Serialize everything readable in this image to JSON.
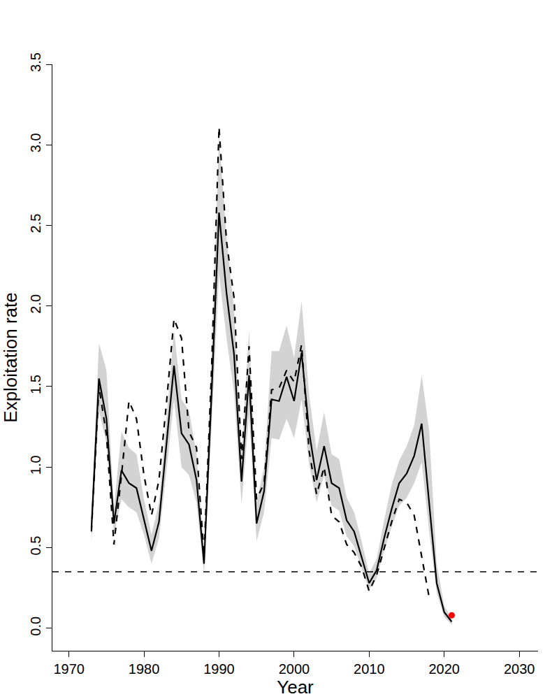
{
  "chart_data": {
    "type": "line",
    "x_label": "Year",
    "y_label": "Exploitation rate",
    "x": [
      1973,
      1974,
      1975,
      1976,
      1977,
      1978,
      1979,
      1980,
      1981,
      1982,
      1983,
      1984,
      1985,
      1986,
      1987,
      1988,
      1989,
      1990,
      1991,
      1992,
      1993,
      1994,
      1995,
      1996,
      1997,
      1998,
      1999,
      2000,
      2001,
      2002,
      2003,
      2004,
      2005,
      2006,
      2007,
      2008,
      2009,
      2010,
      2011,
      2012,
      2013,
      2014,
      2015,
      2016,
      2017,
      2018,
      2019,
      2020,
      2021
    ],
    "series": [
      {
        "color": "black",
        "line_style": "solid",
        "values": [
          0.62,
          1.55,
          1.3,
          0.65,
          0.98,
          0.9,
          0.87,
          0.68,
          0.48,
          0.66,
          1.13,
          1.63,
          1.21,
          1.14,
          0.92,
          0.4,
          1.45,
          2.58,
          2.08,
          1.7,
          0.91,
          1.57,
          0.65,
          0.85,
          1.42,
          1.41,
          1.56,
          1.41,
          1.71,
          1.22,
          0.92,
          1.13,
          0.9,
          0.87,
          0.67,
          0.6,
          0.44,
          0.28,
          0.36,
          0.56,
          0.74,
          0.9,
          0.96,
          1.07,
          1.27,
          0.78,
          0.28,
          0.1,
          0.04
        ],
        "lower": [
          0.53,
          1.35,
          1.15,
          0.58,
          0.8,
          0.75,
          0.72,
          0.58,
          0.4,
          0.56,
          0.98,
          1.42,
          1.0,
          0.95,
          0.78,
          0.34,
          1.25,
          2.2,
          1.8,
          1.46,
          0.77,
          1.33,
          0.54,
          0.72,
          1.18,
          1.17,
          1.3,
          1.18,
          1.42,
          1.02,
          0.78,
          0.95,
          0.76,
          0.73,
          0.57,
          0.51,
          0.37,
          0.24,
          0.31,
          0.48,
          0.63,
          0.76,
          0.81,
          0.9,
          1.03,
          0.6,
          0.22,
          0.07,
          0.02
        ],
        "upper": [
          0.7,
          1.77,
          1.6,
          0.75,
          1.22,
          1.12,
          1.08,
          0.8,
          0.58,
          0.78,
          1.3,
          1.85,
          1.42,
          1.35,
          1.08,
          0.48,
          1.7,
          3.05,
          2.42,
          1.98,
          1.08,
          1.85,
          0.78,
          1.0,
          1.72,
          1.72,
          1.88,
          1.68,
          2.03,
          1.45,
          1.1,
          1.34,
          1.08,
          1.05,
          0.81,
          0.72,
          0.54,
          0.34,
          0.43,
          0.67,
          0.89,
          1.04,
          1.13,
          1.26,
          1.57,
          1.22,
          0.4,
          0.14,
          0.06
        ]
      },
      {
        "color": "black",
        "line_style": "dash",
        "values": [
          0.6,
          1.5,
          1.2,
          0.52,
          0.95,
          1.41,
          1.3,
          0.95,
          0.7,
          0.92,
          1.4,
          1.92,
          1.8,
          1.22,
          1.12,
          0.45,
          1.6,
          3.11,
          2.4,
          2.05,
          1.05,
          1.75,
          0.8,
          0.9,
          1.48,
          1.49,
          1.6,
          1.53,
          1.76,
          1.1,
          0.83,
          1.0,
          0.7,
          0.66,
          0.52,
          0.47,
          0.38,
          0.23,
          0.33,
          0.5,
          0.66,
          0.8,
          0.78,
          0.7,
          0.45,
          0.19,
          null,
          null,
          null
        ]
      },
      {
        "type": "scatter",
        "color": "red",
        "marker": "circle",
        "values": [
          null,
          null,
          null,
          null,
          null,
          null,
          null,
          null,
          null,
          null,
          null,
          null,
          null,
          null,
          null,
          null,
          null,
          null,
          null,
          null,
          null,
          null,
          null,
          null,
          null,
          null,
          null,
          null,
          null,
          null,
          null,
          null,
          null,
          null,
          null,
          null,
          null,
          null,
          null,
          null,
          null,
          null,
          null,
          null,
          null,
          null,
          null,
          null,
          0.08
        ]
      }
    ],
    "reference_line": 0.35,
    "xlim": [
      1967.8,
      2032.5
    ],
    "xticks": [
      1970,
      1980,
      1990,
      2000,
      2010,
      2020,
      2030
    ],
    "ylim": [
      -0.14,
      3.5
    ],
    "yticks": [
      {
        "value": 0,
        "label": "0.0"
      },
      0.5,
      {
        "value": 1,
        "label": "1.0"
      },
      1.5,
      {
        "value": 2,
        "label": "2.0"
      },
      2.5,
      {
        "value": 3,
        "label": "3.0"
      },
      3.5
    ],
    "grid": false
  }
}
